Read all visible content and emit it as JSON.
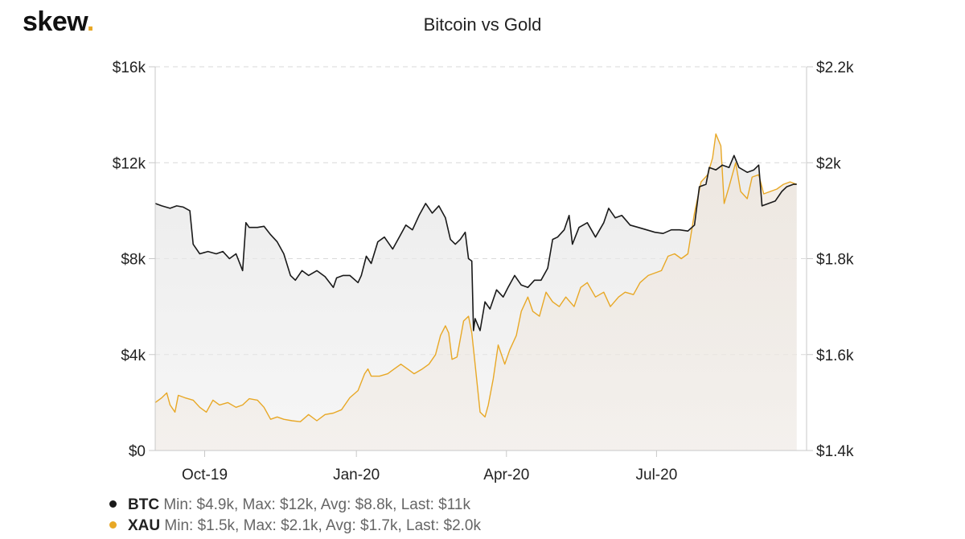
{
  "brand": {
    "name": "skew",
    "dot": "."
  },
  "chart_data": {
    "type": "line",
    "title": "Bitcoin vs Gold",
    "x_range": [
      "2019-09-01",
      "2020-09-30"
    ],
    "x_ticks": [
      {
        "date": "2019-10-01",
        "label": "Oct-19"
      },
      {
        "date": "2020-01-01",
        "label": "Jan-20"
      },
      {
        "date": "2020-04-01",
        "label": "Apr-20"
      },
      {
        "date": "2020-07-01",
        "label": "Jul-20"
      }
    ],
    "y_left": {
      "min": 0,
      "max": 16000,
      "ticks": [
        0,
        4000,
        8000,
        12000,
        16000
      ],
      "labels": [
        "$0",
        "$4k",
        "$8k",
        "$12k",
        "$16k"
      ]
    },
    "y_right": {
      "min": 1400,
      "max": 2200,
      "ticks": [
        1400,
        1600,
        1800,
        2000,
        2200
      ],
      "labels": [
        "$1.4k",
        "$1.6k",
        "$1.8k",
        "$2k",
        "$2.2k"
      ]
    },
    "grid": true,
    "legend_position": "bottom-left",
    "series": [
      {
        "name": "BTC",
        "axis": "left",
        "color": "#1a1a1a",
        "fill": "#e9e9e9",
        "stats": "Min: $4.9k, Max: $12k, Avg: $8.8k, Last: $11k",
        "points": [
          [
            "2019-09-01",
            10300
          ],
          [
            "2019-09-05",
            10200
          ],
          [
            "2019-09-10",
            10100
          ],
          [
            "2019-09-14",
            10200
          ],
          [
            "2019-09-18",
            10150
          ],
          [
            "2019-09-22",
            10000
          ],
          [
            "2019-09-24",
            8600
          ],
          [
            "2019-09-28",
            8200
          ],
          [
            "2019-10-03",
            8300
          ],
          [
            "2019-10-08",
            8200
          ],
          [
            "2019-10-12",
            8300
          ],
          [
            "2019-10-16",
            8000
          ],
          [
            "2019-10-20",
            8200
          ],
          [
            "2019-10-24",
            7500
          ],
          [
            "2019-10-26",
            9500
          ],
          [
            "2019-10-28",
            9300
          ],
          [
            "2019-11-02",
            9300
          ],
          [
            "2019-11-06",
            9350
          ],
          [
            "2019-11-10",
            9000
          ],
          [
            "2019-11-14",
            8700
          ],
          [
            "2019-11-18",
            8200
          ],
          [
            "2019-11-22",
            7300
          ],
          [
            "2019-11-25",
            7100
          ],
          [
            "2019-11-29",
            7500
          ],
          [
            "2019-12-03",
            7300
          ],
          [
            "2019-12-08",
            7500
          ],
          [
            "2019-12-13",
            7250
          ],
          [
            "2019-12-18",
            6800
          ],
          [
            "2019-12-20",
            7200
          ],
          [
            "2019-12-24",
            7300
          ],
          [
            "2019-12-28",
            7300
          ],
          [
            "2020-01-02",
            7000
          ],
          [
            "2020-01-04",
            7300
          ],
          [
            "2020-01-07",
            8100
          ],
          [
            "2020-01-10",
            7800
          ],
          [
            "2020-01-14",
            8700
          ],
          [
            "2020-01-18",
            8900
          ],
          [
            "2020-01-23",
            8400
          ],
          [
            "2020-01-27",
            8900
          ],
          [
            "2020-01-31",
            9400
          ],
          [
            "2020-02-04",
            9200
          ],
          [
            "2020-02-08",
            9800
          ],
          [
            "2020-02-12",
            10300
          ],
          [
            "2020-02-16",
            9900
          ],
          [
            "2020-02-20",
            10200
          ],
          [
            "2020-02-24",
            9700
          ],
          [
            "2020-02-27",
            8800
          ],
          [
            "2020-03-01",
            8600
          ],
          [
            "2020-03-04",
            8800
          ],
          [
            "2020-03-07",
            9100
          ],
          [
            "2020-03-09",
            8000
          ],
          [
            "2020-03-11",
            7900
          ],
          [
            "2020-03-12",
            5000
          ],
          [
            "2020-03-13",
            5500
          ],
          [
            "2020-03-16",
            5000
          ],
          [
            "2020-03-19",
            6200
          ],
          [
            "2020-03-22",
            5900
          ],
          [
            "2020-03-26",
            6700
          ],
          [
            "2020-03-30",
            6400
          ],
          [
            "2020-04-02",
            6800
          ],
          [
            "2020-04-06",
            7300
          ],
          [
            "2020-04-10",
            6900
          ],
          [
            "2020-04-14",
            6800
          ],
          [
            "2020-04-18",
            7100
          ],
          [
            "2020-04-22",
            7100
          ],
          [
            "2020-04-26",
            7600
          ],
          [
            "2020-04-29",
            8800
          ],
          [
            "2020-05-02",
            8900
          ],
          [
            "2020-05-06",
            9200
          ],
          [
            "2020-05-09",
            9800
          ],
          [
            "2020-05-11",
            8600
          ],
          [
            "2020-05-15",
            9300
          ],
          [
            "2020-05-20",
            9500
          ],
          [
            "2020-05-25",
            8900
          ],
          [
            "2020-05-30",
            9500
          ],
          [
            "2020-06-02",
            10100
          ],
          [
            "2020-06-06",
            9700
          ],
          [
            "2020-06-10",
            9800
          ],
          [
            "2020-06-15",
            9400
          ],
          [
            "2020-06-20",
            9300
          ],
          [
            "2020-06-25",
            9200
          ],
          [
            "2020-06-30",
            9100
          ],
          [
            "2020-07-05",
            9050
          ],
          [
            "2020-07-10",
            9200
          ],
          [
            "2020-07-15",
            9200
          ],
          [
            "2020-07-20",
            9150
          ],
          [
            "2020-07-24",
            9400
          ],
          [
            "2020-07-27",
            11000
          ],
          [
            "2020-07-31",
            11100
          ],
          [
            "2020-08-02",
            11800
          ],
          [
            "2020-08-06",
            11700
          ],
          [
            "2020-08-10",
            11900
          ],
          [
            "2020-08-14",
            11800
          ],
          [
            "2020-08-17",
            12300
          ],
          [
            "2020-08-20",
            11800
          ],
          [
            "2020-08-25",
            11600
          ],
          [
            "2020-08-29",
            11700
          ],
          [
            "2020-09-01",
            11900
          ],
          [
            "2020-09-03",
            10200
          ],
          [
            "2020-09-07",
            10300
          ],
          [
            "2020-09-11",
            10400
          ],
          [
            "2020-09-15",
            10800
          ],
          [
            "2020-09-18",
            11000
          ],
          [
            "2020-09-22",
            11100
          ],
          [
            "2020-09-24",
            11100
          ]
        ]
      },
      {
        "name": "XAU",
        "axis": "right",
        "color": "#e8a826",
        "fill": "#efe6dc",
        "stats": "Min: $1.5k, Max: $2.1k, Avg: $1.7k, Last: $2.0k",
        "points": [
          [
            "2019-09-01",
            1500
          ],
          [
            "2019-09-05",
            1510
          ],
          [
            "2019-09-08",
            1520
          ],
          [
            "2019-09-10",
            1495
          ],
          [
            "2019-09-13",
            1480
          ],
          [
            "2019-09-15",
            1515
          ],
          [
            "2019-09-19",
            1510
          ],
          [
            "2019-09-24",
            1505
          ],
          [
            "2019-09-28",
            1490
          ],
          [
            "2019-10-02",
            1480
          ],
          [
            "2019-10-06",
            1505
          ],
          [
            "2019-10-10",
            1495
          ],
          [
            "2019-10-15",
            1500
          ],
          [
            "2019-10-20",
            1490
          ],
          [
            "2019-10-24",
            1495
          ],
          [
            "2019-10-28",
            1508
          ],
          [
            "2019-11-02",
            1505
          ],
          [
            "2019-11-06",
            1490
          ],
          [
            "2019-11-10",
            1465
          ],
          [
            "2019-11-14",
            1470
          ],
          [
            "2019-11-18",
            1465
          ],
          [
            "2019-11-23",
            1462
          ],
          [
            "2019-11-28",
            1460
          ],
          [
            "2019-12-03",
            1475
          ],
          [
            "2019-12-08",
            1462
          ],
          [
            "2019-12-13",
            1475
          ],
          [
            "2019-12-18",
            1478
          ],
          [
            "2019-12-23",
            1485
          ],
          [
            "2019-12-28",
            1510
          ],
          [
            "2020-01-02",
            1525
          ],
          [
            "2020-01-06",
            1560
          ],
          [
            "2020-01-08",
            1570
          ],
          [
            "2020-01-10",
            1555
          ],
          [
            "2020-01-15",
            1555
          ],
          [
            "2020-01-20",
            1560
          ],
          [
            "2020-01-24",
            1570
          ],
          [
            "2020-01-28",
            1580
          ],
          [
            "2020-02-01",
            1570
          ],
          [
            "2020-02-05",
            1560
          ],
          [
            "2020-02-10",
            1570
          ],
          [
            "2020-02-14",
            1580
          ],
          [
            "2020-02-18",
            1600
          ],
          [
            "2020-02-21",
            1640
          ],
          [
            "2020-02-24",
            1660
          ],
          [
            "2020-02-26",
            1645
          ],
          [
            "2020-02-28",
            1590
          ],
          [
            "2020-03-02",
            1595
          ],
          [
            "2020-03-06",
            1670
          ],
          [
            "2020-03-09",
            1680
          ],
          [
            "2020-03-11",
            1645
          ],
          [
            "2020-03-13",
            1580
          ],
          [
            "2020-03-16",
            1480
          ],
          [
            "2020-03-19",
            1470
          ],
          [
            "2020-03-21",
            1495
          ],
          [
            "2020-03-24",
            1550
          ],
          [
            "2020-03-27",
            1620
          ],
          [
            "2020-03-31",
            1580
          ],
          [
            "2020-04-03",
            1610
          ],
          [
            "2020-04-07",
            1640
          ],
          [
            "2020-04-10",
            1690
          ],
          [
            "2020-04-14",
            1720
          ],
          [
            "2020-04-17",
            1690
          ],
          [
            "2020-04-21",
            1680
          ],
          [
            "2020-04-25",
            1730
          ],
          [
            "2020-04-29",
            1710
          ],
          [
            "2020-05-03",
            1700
          ],
          [
            "2020-05-07",
            1720
          ],
          [
            "2020-05-12",
            1700
          ],
          [
            "2020-05-16",
            1740
          ],
          [
            "2020-05-20",
            1750
          ],
          [
            "2020-05-25",
            1720
          ],
          [
            "2020-05-30",
            1730
          ],
          [
            "2020-06-03",
            1700
          ],
          [
            "2020-06-08",
            1720
          ],
          [
            "2020-06-12",
            1730
          ],
          [
            "2020-06-17",
            1725
          ],
          [
            "2020-06-21",
            1750
          ],
          [
            "2020-06-26",
            1765
          ],
          [
            "2020-06-30",
            1770
          ],
          [
            "2020-07-04",
            1775
          ],
          [
            "2020-07-08",
            1805
          ],
          [
            "2020-07-12",
            1810
          ],
          [
            "2020-07-16",
            1800
          ],
          [
            "2020-07-20",
            1810
          ],
          [
            "2020-07-24",
            1895
          ],
          [
            "2020-07-28",
            1960
          ],
          [
            "2020-08-01",
            1975
          ],
          [
            "2020-08-04",
            2010
          ],
          [
            "2020-08-06",
            2060
          ],
          [
            "2020-08-09",
            2035
          ],
          [
            "2020-08-11",
            1915
          ],
          [
            "2020-08-14",
            1950
          ],
          [
            "2020-08-18",
            2000
          ],
          [
            "2020-08-21",
            1940
          ],
          [
            "2020-08-25",
            1925
          ],
          [
            "2020-08-28",
            1970
          ],
          [
            "2020-09-01",
            1975
          ],
          [
            "2020-09-04",
            1935
          ],
          [
            "2020-09-08",
            1940
          ],
          [
            "2020-09-12",
            1945
          ],
          [
            "2020-09-16",
            1955
          ],
          [
            "2020-09-20",
            1960
          ],
          [
            "2020-09-24",
            1955
          ]
        ]
      }
    ]
  }
}
